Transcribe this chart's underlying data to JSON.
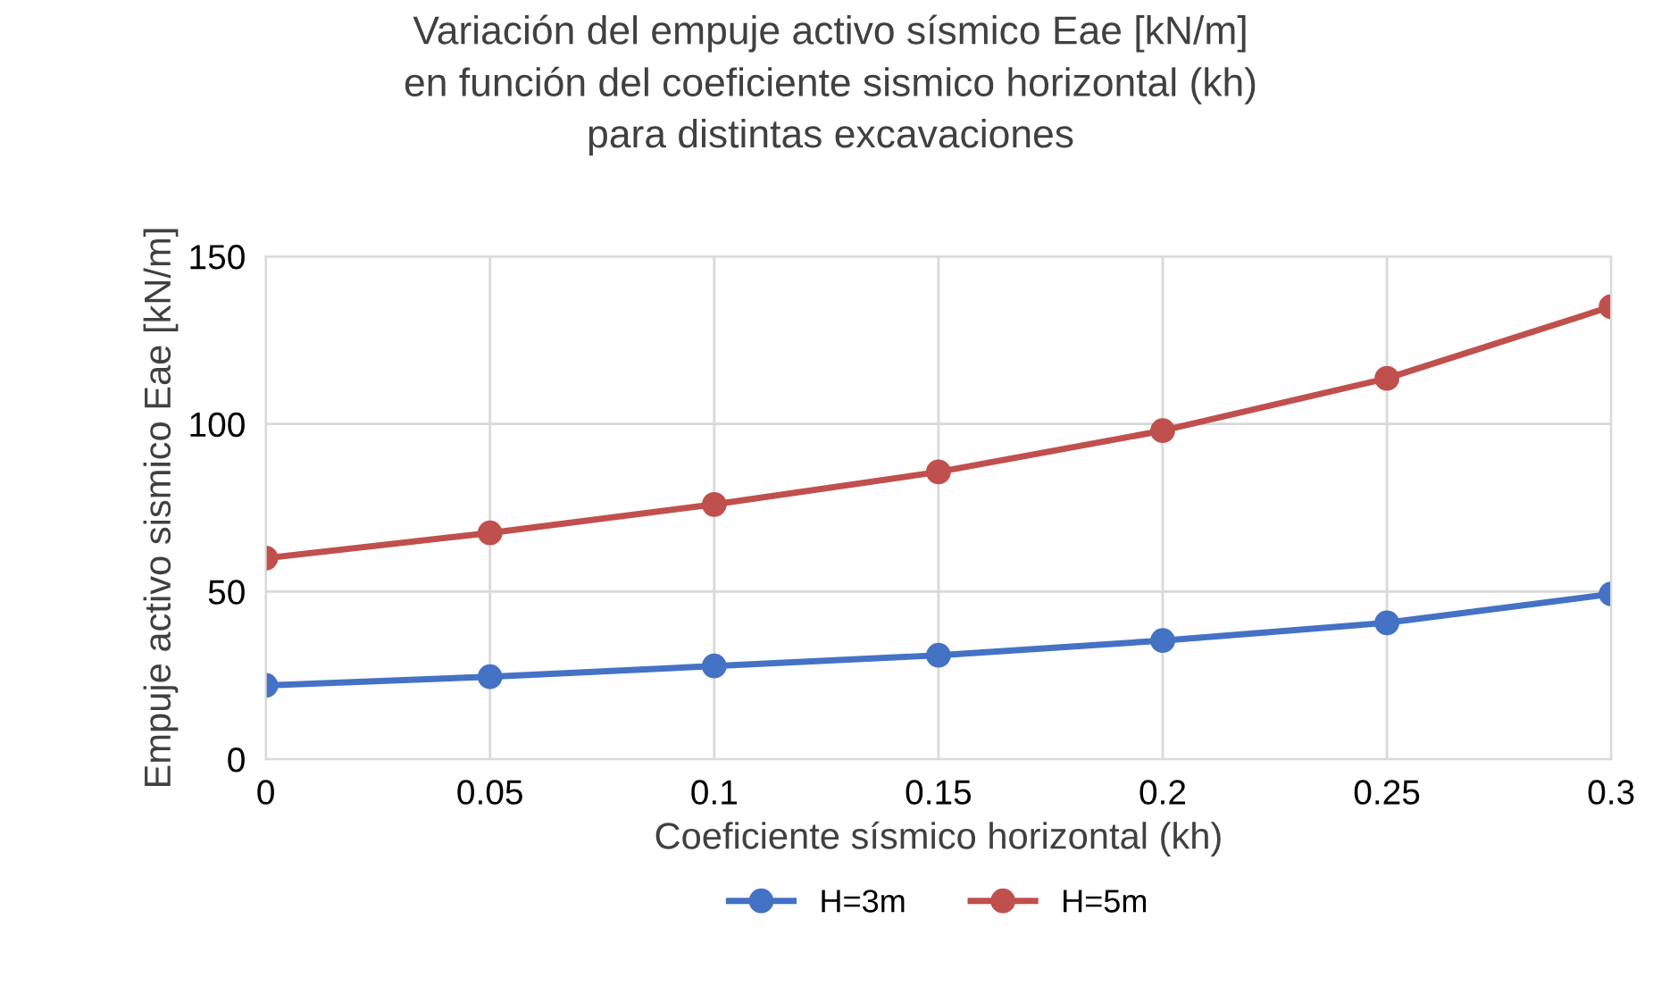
{
  "chart_data": {
    "type": "line",
    "title": "Variación del empuje activo sísmico Eae [kN/m]\nen función del coeficiente sismico horizontal (kh)\npara distintas excavaciones",
    "xlabel": "Coeficiente sísmico horizontal (kh)",
    "ylabel": "Empuje activo sismico Eae [kN/m]",
    "x": [
      0,
      0.05,
      0.1,
      0.15,
      0.2,
      0.25,
      0.3
    ],
    "series": [
      {
        "name": "H=3m",
        "color": "#4472c4",
        "values": [
          22,
          24.6,
          27.8,
          31,
          35.4,
          40.7,
          49.3
        ]
      },
      {
        "name": "H=5m",
        "color": "#c0504d",
        "values": [
          60,
          67.5,
          76,
          85.7,
          98,
          113.6,
          135
        ]
      }
    ],
    "xlim": [
      0,
      0.3
    ],
    "xticks": [
      {
        "value": 0,
        "label": "0"
      },
      0.05,
      0.1,
      0.15,
      0.2,
      0.25,
      0.3
    ],
    "ylim": [
      0,
      150
    ],
    "yticks": [
      0,
      50,
      100,
      150
    ],
    "grid": true,
    "legend": "bottom",
    "marker": "circle",
    "line_style": "solid"
  }
}
